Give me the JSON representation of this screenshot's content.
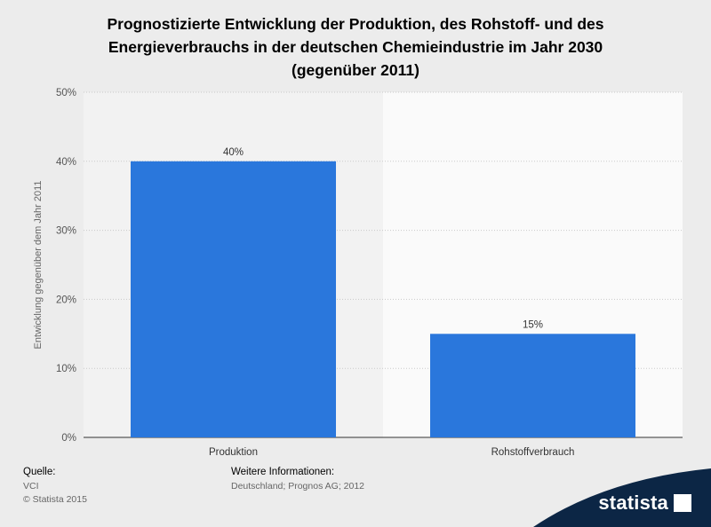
{
  "title_lines": [
    "Prognostizierte Entwicklung der Produktion, des Rohstoff- und des",
    "Energieverbrauchs in der deutschen Chemieindustrie im Jahr 2030",
    "(gegenüber 2011)"
  ],
  "chart_data": {
    "type": "bar",
    "categories": [
      "Produktion",
      "Rohstoffverbrauch"
    ],
    "values": [
      40,
      15
    ],
    "value_labels": [
      "40%",
      "15%"
    ],
    "ylabel": "Entwicklung gegenüber dem Jahr 2011",
    "ylim": [
      0,
      50
    ],
    "yticks": [
      0,
      10,
      20,
      30,
      40,
      50
    ],
    "ytick_labels": [
      "0%",
      "10%",
      "20%",
      "30%",
      "40%",
      "50%"
    ],
    "grid": true,
    "bar_color": "#2a77dc"
  },
  "footer": {
    "source_label": "Quelle:",
    "source_value": "VCI",
    "copyright": "© Statista 2015",
    "info_label": "Weitere Informationen:",
    "info_value": "Deutschland; Prognos AG; 2012"
  },
  "brand": {
    "name": "statista",
    "color": "#0c2645"
  }
}
